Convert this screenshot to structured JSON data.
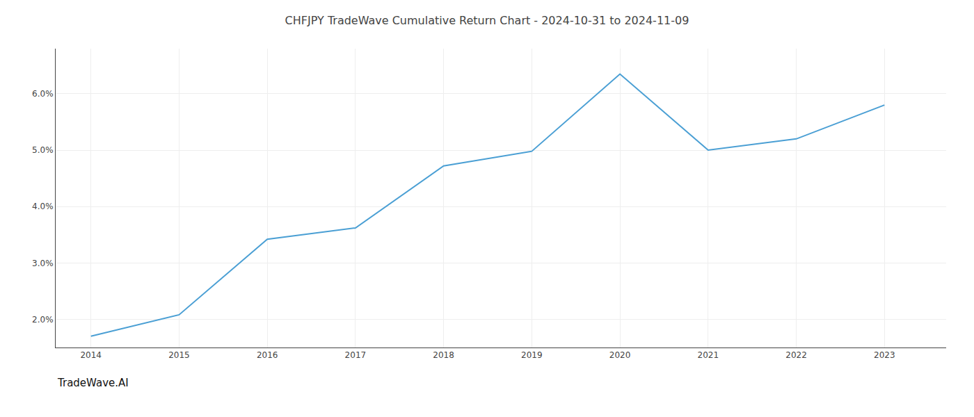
{
  "chart_data": {
    "type": "line",
    "title": "CHFJPY TradeWave Cumulative Return Chart - 2024-10-31 to 2024-11-09",
    "annotations": [
      "TradeWave.AI"
    ],
    "x": [
      2014,
      2015,
      2016,
      2017,
      2018,
      2019,
      2020,
      2021,
      2022,
      2023
    ],
    "values": [
      1.7,
      2.08,
      3.42,
      3.62,
      4.72,
      4.98,
      6.35,
      5.0,
      5.2,
      5.8
    ],
    "color": "#4a9fd4",
    "xlim": [
      2013.6,
      2023.7
    ],
    "ylim": [
      1.5,
      6.8
    ],
    "xticks": [
      2014,
      2015,
      2016,
      2017,
      2018,
      2019,
      2020,
      2021,
      2022,
      2023
    ],
    "yticks": [
      {
        "value": 2.0,
        "label": "2.0%"
      },
      {
        "value": 3.0,
        "label": "3.0%"
      },
      {
        "value": 4.0,
        "label": "4.0%"
      },
      {
        "value": 5.0,
        "label": "5.0%"
      },
      {
        "value": 6.0,
        "label": "6.0%"
      }
    ],
    "grid": true
  }
}
